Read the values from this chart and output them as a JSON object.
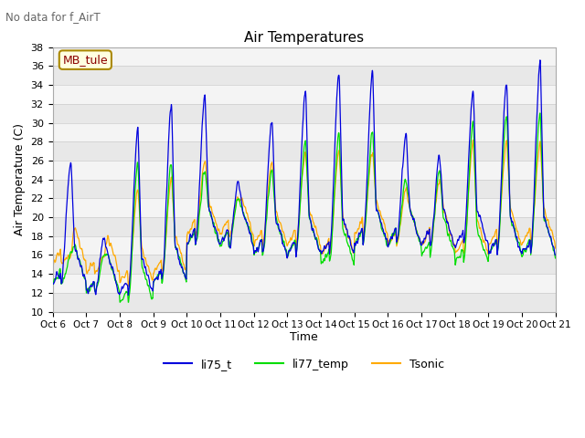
{
  "title": "Air Temperatures",
  "subtitle": "No data for f_AirT",
  "ylabel": "Air Temperature (C)",
  "xlabel": "Time",
  "ylim": [
    10,
    38
  ],
  "xlim": [
    0,
    15
  ],
  "x_tick_labels": [
    "Oct 6",
    "Oct 7",
    "Oct 8",
    "Oct 9",
    "Oct 10",
    "Oct 11",
    "Oct 12",
    "Oct 13",
    "Oct 14",
    "Oct 15",
    "Oct 16",
    "Oct 17",
    "Oct 18",
    "Oct 19",
    "Oct 20",
    "Oct 21"
  ],
  "annotation_box": "MB_tule",
  "line_colors": {
    "li75_t": "#0000dd",
    "li77_temp": "#00dd00",
    "Tsonic": "#ffaa00"
  },
  "band_colors": [
    "#e8e8e8",
    "#f4f4f4"
  ],
  "background_color": "#ffffff",
  "yticks": [
    10,
    12,
    14,
    16,
    18,
    20,
    22,
    24,
    26,
    28,
    30,
    32,
    34,
    36,
    38
  ]
}
